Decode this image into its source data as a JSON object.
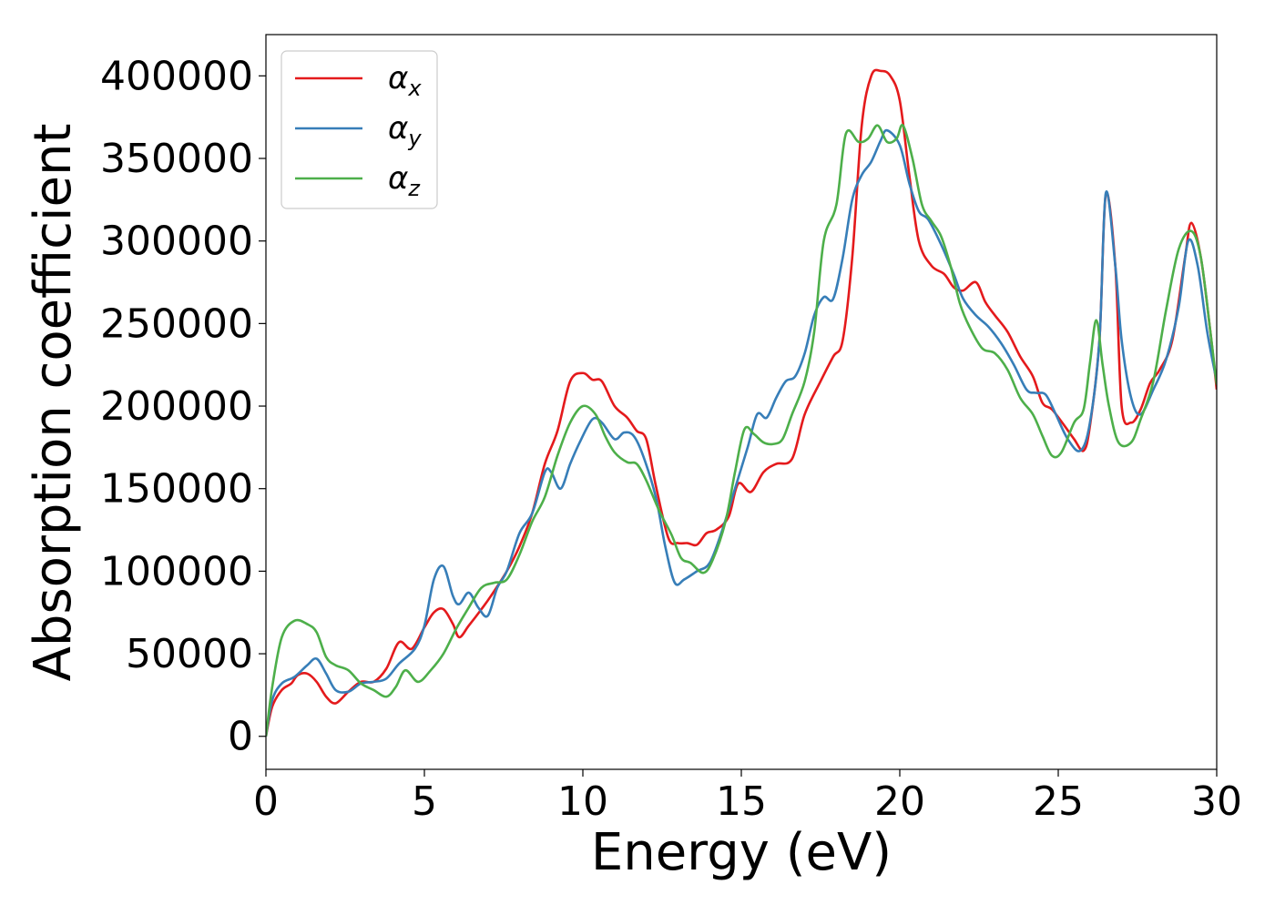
{
  "chart_data": {
    "type": "line",
    "title": "",
    "xlabel": "Energy (eV)",
    "ylabel": "Absorption coefficient",
    "xlim": [
      0,
      30
    ],
    "ylim": [
      -20000,
      425000
    ],
    "xticks": [
      0,
      5,
      10,
      15,
      20,
      25,
      30
    ],
    "xtick_labels": [
      "0",
      "5",
      "10",
      "15",
      "20",
      "25",
      "30"
    ],
    "yticks": [
      0,
      50000,
      100000,
      150000,
      200000,
      250000,
      300000,
      350000,
      400000
    ],
    "ytick_labels": [
      "0",
      "50000",
      "100000",
      "150000",
      "200000",
      "250000",
      "300000",
      "350000",
      "400000"
    ],
    "grid": false,
    "legend_position": "top-left",
    "series": [
      {
        "name": "αx",
        "name_base": "α",
        "name_sub": "x",
        "color": "#e41a1c",
        "points": [
          [
            0,
            0
          ],
          [
            0.2,
            18000
          ],
          [
            0.5,
            28000
          ],
          [
            0.8,
            32000
          ],
          [
            1.0,
            37000
          ],
          [
            1.3,
            38000
          ],
          [
            1.6,
            33000
          ],
          [
            1.9,
            24000
          ],
          [
            2.2,
            20000
          ],
          [
            2.6,
            27000
          ],
          [
            3.0,
            33000
          ],
          [
            3.4,
            33000
          ],
          [
            3.8,
            41000
          ],
          [
            4.2,
            57000
          ],
          [
            4.6,
            53000
          ],
          [
            5.0,
            66000
          ],
          [
            5.3,
            75000
          ],
          [
            5.6,
            77000
          ],
          [
            5.9,
            68000
          ],
          [
            6.1,
            60000
          ],
          [
            6.4,
            67000
          ],
          [
            6.8,
            77000
          ],
          [
            7.1,
            85000
          ],
          [
            7.6,
            100000
          ],
          [
            8.0,
            115000
          ],
          [
            8.4,
            135000
          ],
          [
            8.8,
            165000
          ],
          [
            9.2,
            185000
          ],
          [
            9.6,
            215000
          ],
          [
            10.0,
            220000
          ],
          [
            10.3,
            216000
          ],
          [
            10.6,
            215000
          ],
          [
            11.0,
            200000
          ],
          [
            11.4,
            193000
          ],
          [
            11.7,
            185000
          ],
          [
            12.0,
            180000
          ],
          [
            12.3,
            152000
          ],
          [
            12.7,
            120000
          ],
          [
            13.0,
            117000
          ],
          [
            13.3,
            117000
          ],
          [
            13.6,
            116000
          ],
          [
            13.9,
            123000
          ],
          [
            14.2,
            125000
          ],
          [
            14.6,
            133000
          ],
          [
            14.9,
            153000
          ],
          [
            15.3,
            148000
          ],
          [
            15.7,
            160000
          ],
          [
            16.1,
            165000
          ],
          [
            16.6,
            168000
          ],
          [
            17.0,
            195000
          ],
          [
            17.5,
            215000
          ],
          [
            17.9,
            230000
          ],
          [
            18.2,
            240000
          ],
          [
            18.5,
            290000
          ],
          [
            18.8,
            370000
          ],
          [
            19.1,
            400000
          ],
          [
            19.4,
            403000
          ],
          [
            19.7,
            400000
          ],
          [
            20.0,
            385000
          ],
          [
            20.3,
            340000
          ],
          [
            20.6,
            300000
          ],
          [
            21.0,
            285000
          ],
          [
            21.4,
            280000
          ],
          [
            21.7,
            272000
          ],
          [
            22.0,
            270000
          ],
          [
            22.4,
            275000
          ],
          [
            22.7,
            263000
          ],
          [
            23.0,
            255000
          ],
          [
            23.4,
            245000
          ],
          [
            23.8,
            230000
          ],
          [
            24.2,
            218000
          ],
          [
            24.5,
            202000
          ],
          [
            24.8,
            198000
          ],
          [
            25.2,
            188000
          ],
          [
            25.5,
            180000
          ],
          [
            25.8,
            173000
          ],
          [
            26.0,
            188000
          ],
          [
            26.3,
            240000
          ],
          [
            26.5,
            328000
          ],
          [
            26.8,
            285000
          ],
          [
            27.0,
            200000
          ],
          [
            27.3,
            190000
          ],
          [
            27.6,
            198000
          ],
          [
            27.9,
            214000
          ],
          [
            28.2,
            222000
          ],
          [
            28.6,
            240000
          ],
          [
            29.0,
            290000
          ],
          [
            29.2,
            311000
          ],
          [
            29.5,
            290000
          ],
          [
            29.8,
            245000
          ],
          [
            30.0,
            210000
          ]
        ]
      },
      {
        "name": "αy",
        "name_base": "α",
        "name_sub": "y",
        "color": "#377eb8",
        "points": [
          [
            0,
            0
          ],
          [
            0.2,
            22000
          ],
          [
            0.5,
            32000
          ],
          [
            0.9,
            36000
          ],
          [
            1.3,
            43000
          ],
          [
            1.6,
            47000
          ],
          [
            1.9,
            38000
          ],
          [
            2.2,
            28000
          ],
          [
            2.6,
            27000
          ],
          [
            3.0,
            32000
          ],
          [
            3.4,
            33000
          ],
          [
            3.8,
            35000
          ],
          [
            4.2,
            44000
          ],
          [
            4.7,
            53000
          ],
          [
            5.0,
            67000
          ],
          [
            5.3,
            95000
          ],
          [
            5.6,
            103000
          ],
          [
            5.9,
            85000
          ],
          [
            6.1,
            80000
          ],
          [
            6.4,
            87000
          ],
          [
            6.7,
            78000
          ],
          [
            7.0,
            73000
          ],
          [
            7.3,
            90000
          ],
          [
            7.6,
            100000
          ],
          [
            8.0,
            123000
          ],
          [
            8.4,
            135000
          ],
          [
            8.8,
            160000
          ],
          [
            9.0,
            160000
          ],
          [
            9.3,
            150000
          ],
          [
            9.6,
            165000
          ],
          [
            9.9,
            178000
          ],
          [
            10.3,
            192000
          ],
          [
            10.6,
            190000
          ],
          [
            11.0,
            180000
          ],
          [
            11.3,
            184000
          ],
          [
            11.6,
            182000
          ],
          [
            11.9,
            170000
          ],
          [
            12.3,
            145000
          ],
          [
            12.6,
            115000
          ],
          [
            12.9,
            93000
          ],
          [
            13.2,
            95000
          ],
          [
            13.6,
            100000
          ],
          [
            14.0,
            105000
          ],
          [
            14.4,
            125000
          ],
          [
            14.8,
            150000
          ],
          [
            15.2,
            175000
          ],
          [
            15.5,
            195000
          ],
          [
            15.8,
            193000
          ],
          [
            16.1,
            205000
          ],
          [
            16.4,
            215000
          ],
          [
            16.7,
            218000
          ],
          [
            17.0,
            232000
          ],
          [
            17.3,
            255000
          ],
          [
            17.6,
            266000
          ],
          [
            17.9,
            265000
          ],
          [
            18.2,
            290000
          ],
          [
            18.5,
            325000
          ],
          [
            18.8,
            340000
          ],
          [
            19.1,
            348000
          ],
          [
            19.4,
            361000
          ],
          [
            19.6,
            367000
          ],
          [
            20.0,
            358000
          ],
          [
            20.3,
            335000
          ],
          [
            20.6,
            318000
          ],
          [
            20.9,
            313000
          ],
          [
            21.3,
            298000
          ],
          [
            21.7,
            280000
          ],
          [
            22.0,
            265000
          ],
          [
            22.4,
            255000
          ],
          [
            22.8,
            248000
          ],
          [
            23.2,
            238000
          ],
          [
            23.6,
            225000
          ],
          [
            24.0,
            210000
          ],
          [
            24.3,
            208000
          ],
          [
            24.6,
            207000
          ],
          [
            24.9,
            196000
          ],
          [
            25.3,
            180000
          ],
          [
            25.7,
            173000
          ],
          [
            26.0,
            190000
          ],
          [
            26.3,
            240000
          ],
          [
            26.5,
            329000
          ],
          [
            26.8,
            285000
          ],
          [
            27.0,
            240000
          ],
          [
            27.3,
            205000
          ],
          [
            27.6,
            195000
          ],
          [
            28.0,
            210000
          ],
          [
            28.4,
            228000
          ],
          [
            28.8,
            260000
          ],
          [
            29.1,
            300000
          ],
          [
            29.4,
            285000
          ],
          [
            29.7,
            245000
          ],
          [
            30.0,
            215000
          ]
        ]
      },
      {
        "name": "αz",
        "name_base": "α",
        "name_sub": "z",
        "color": "#4daf4a",
        "points": [
          [
            0,
            0
          ],
          [
            0.2,
            30000
          ],
          [
            0.5,
            60000
          ],
          [
            0.9,
            70000
          ],
          [
            1.3,
            68000
          ],
          [
            1.6,
            63000
          ],
          [
            1.9,
            48000
          ],
          [
            2.2,
            43000
          ],
          [
            2.6,
            40000
          ],
          [
            3.0,
            32000
          ],
          [
            3.4,
            28000
          ],
          [
            3.8,
            24000
          ],
          [
            4.1,
            30000
          ],
          [
            4.4,
            40000
          ],
          [
            4.8,
            33000
          ],
          [
            5.2,
            40000
          ],
          [
            5.6,
            50000
          ],
          [
            6.0,
            65000
          ],
          [
            6.4,
            78000
          ],
          [
            6.8,
            90000
          ],
          [
            7.2,
            93000
          ],
          [
            7.6,
            95000
          ],
          [
            8.0,
            110000
          ],
          [
            8.4,
            130000
          ],
          [
            8.8,
            145000
          ],
          [
            9.2,
            170000
          ],
          [
            9.6,
            190000
          ],
          [
            10.0,
            200000
          ],
          [
            10.4,
            195000
          ],
          [
            10.7,
            182000
          ],
          [
            11.0,
            172000
          ],
          [
            11.4,
            166000
          ],
          [
            11.7,
            165000
          ],
          [
            12.0,
            155000
          ],
          [
            12.4,
            137000
          ],
          [
            12.8,
            122000
          ],
          [
            13.1,
            108000
          ],
          [
            13.4,
            105000
          ],
          [
            13.8,
            99000
          ],
          [
            14.1,
            107000
          ],
          [
            14.5,
            130000
          ],
          [
            14.8,
            160000
          ],
          [
            15.1,
            186000
          ],
          [
            15.4,
            183000
          ],
          [
            15.7,
            178000
          ],
          [
            16.0,
            177000
          ],
          [
            16.3,
            180000
          ],
          [
            16.6,
            195000
          ],
          [
            17.0,
            215000
          ],
          [
            17.3,
            245000
          ],
          [
            17.6,
            300000
          ],
          [
            18.0,
            322000
          ],
          [
            18.3,
            365000
          ],
          [
            18.7,
            360000
          ],
          [
            19.0,
            362000
          ],
          [
            19.3,
            370000
          ],
          [
            19.6,
            360000
          ],
          [
            19.9,
            362000
          ],
          [
            20.1,
            370000
          ],
          [
            20.4,
            350000
          ],
          [
            20.7,
            322000
          ],
          [
            21.0,
            312000
          ],
          [
            21.3,
            303000
          ],
          [
            21.6,
            285000
          ],
          [
            21.9,
            262000
          ],
          [
            22.2,
            248000
          ],
          [
            22.6,
            235000
          ],
          [
            23.0,
            232000
          ],
          [
            23.4,
            222000
          ],
          [
            23.8,
            205000
          ],
          [
            24.2,
            195000
          ],
          [
            24.5,
            182000
          ],
          [
            24.8,
            170000
          ],
          [
            25.1,
            172000
          ],
          [
            25.5,
            190000
          ],
          [
            25.8,
            198000
          ],
          [
            26.0,
            226000
          ],
          [
            26.2,
            252000
          ],
          [
            26.4,
            225000
          ],
          [
            26.6,
            200000
          ],
          [
            26.9,
            178000
          ],
          [
            27.3,
            178000
          ],
          [
            27.6,
            192000
          ],
          [
            28.0,
            215000
          ],
          [
            28.4,
            258000
          ],
          [
            28.8,
            295000
          ],
          [
            29.2,
            306000
          ],
          [
            29.5,
            290000
          ],
          [
            29.8,
            245000
          ],
          [
            30.0,
            213000
          ]
        ]
      }
    ]
  }
}
